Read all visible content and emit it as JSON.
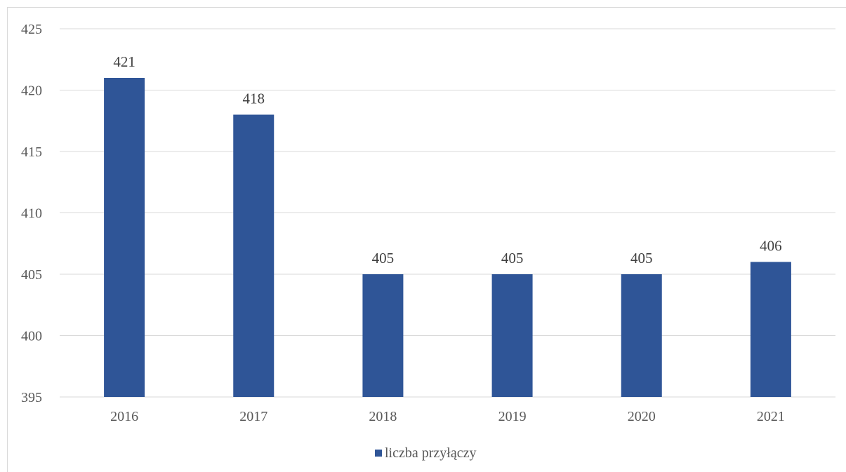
{
  "chart_data": {
    "type": "bar",
    "categories": [
      "2016",
      "2017",
      "2018",
      "2019",
      "2020",
      "2021"
    ],
    "series": [
      {
        "name": "liczba przyłączy",
        "values": [
          421,
          418,
          405,
          405,
          405,
          406
        ],
        "color": "#2f5597"
      }
    ],
    "data_labels": [
      "421",
      "418",
      "405",
      "405",
      "405",
      "406"
    ],
    "y_ticks": [
      "395",
      "400",
      "405",
      "410",
      "415",
      "420",
      "425"
    ],
    "ylim": [
      395,
      425
    ],
    "title": "",
    "xlabel": "",
    "ylabel": "",
    "grid": true,
    "gridline_color": "#d9d9d9",
    "legend_position": "bottom"
  }
}
